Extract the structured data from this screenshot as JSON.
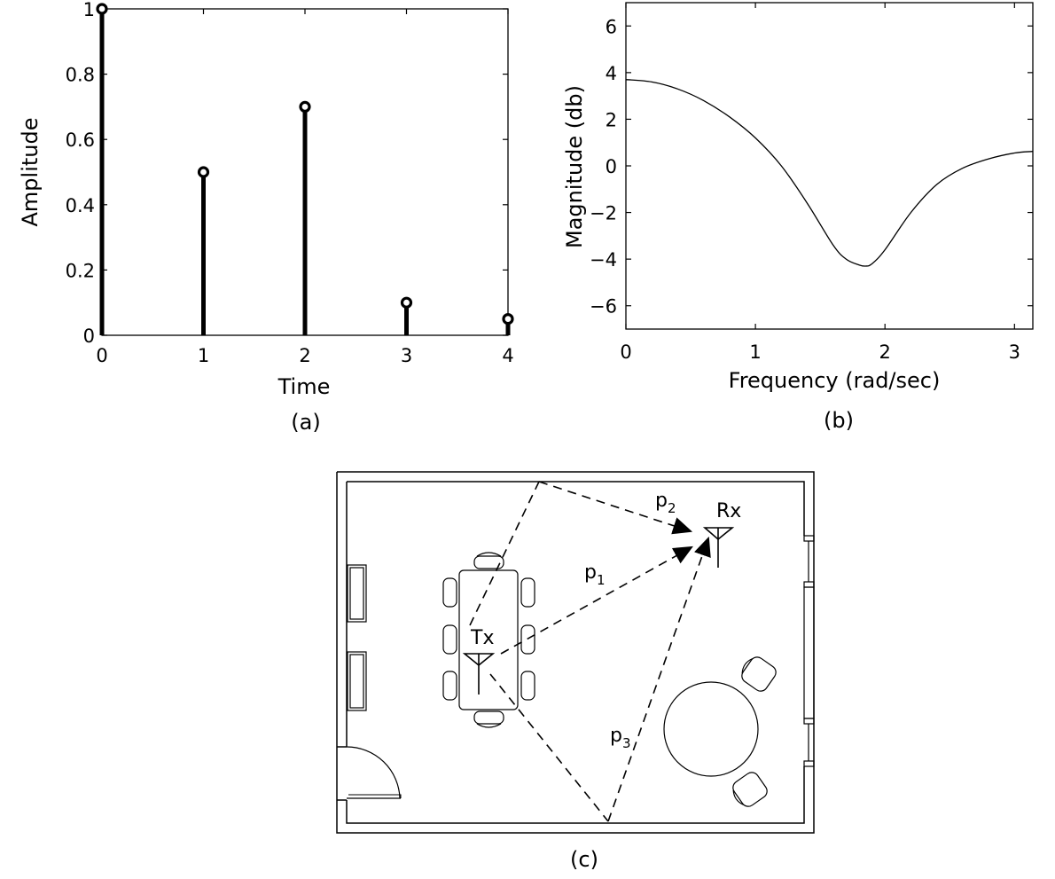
{
  "chart_data": [
    {
      "type": "stem",
      "x": [
        0,
        1,
        2,
        3,
        4
      ],
      "values": [
        1.0,
        0.5,
        0.7,
        0.1,
        0.05
      ],
      "xlabel": "Time",
      "ylabel": "Amplitude",
      "xlim": [
        0,
        4
      ],
      "ylim": [
        0,
        1
      ],
      "xticks": [
        "0",
        "1",
        "2",
        "3",
        "4"
      ],
      "yticks": [
        "0",
        "0.2",
        "0.4",
        "0.6",
        "0.8",
        "1"
      ],
      "grid": false,
      "caption": "(a)"
    },
    {
      "type": "line",
      "series": [
        {
          "x": [
            0,
            0.2,
            0.4,
            0.6,
            0.8,
            1.0,
            1.2,
            1.4,
            1.6,
            1.7,
            1.8,
            1.85,
            1.9,
            2.0,
            2.2,
            2.4,
            2.6,
            2.8,
            3.0,
            3.14
          ],
          "values": [
            3.7,
            3.6,
            3.3,
            2.8,
            2.1,
            1.2,
            0.0,
            -1.6,
            -3.4,
            -4.0,
            -4.25,
            -4.3,
            -4.2,
            -3.6,
            -2.0,
            -0.8,
            -0.1,
            0.3,
            0.55,
            0.62
          ]
        }
      ],
      "xlabel": "Frequency (rad/sec)",
      "ylabel": "Magnitude (db)",
      "xlim": [
        0,
        3.1416
      ],
      "ylim": [
        -7,
        7
      ],
      "xticks": [
        "0",
        "1",
        "2",
        "3"
      ],
      "yticks": [
        "−6",
        "−4",
        "−2",
        "0",
        "2",
        "4",
        "6"
      ],
      "grid": false,
      "caption": "(b)"
    }
  ],
  "diagram": {
    "caption": "(c)",
    "transmitter_label": "Tx",
    "receiver_label": "Rx",
    "path_labels": [
      {
        "base": "p",
        "sub": "1"
      },
      {
        "base": "p",
        "sub": "2"
      },
      {
        "base": "p",
        "sub": "3"
      }
    ]
  }
}
